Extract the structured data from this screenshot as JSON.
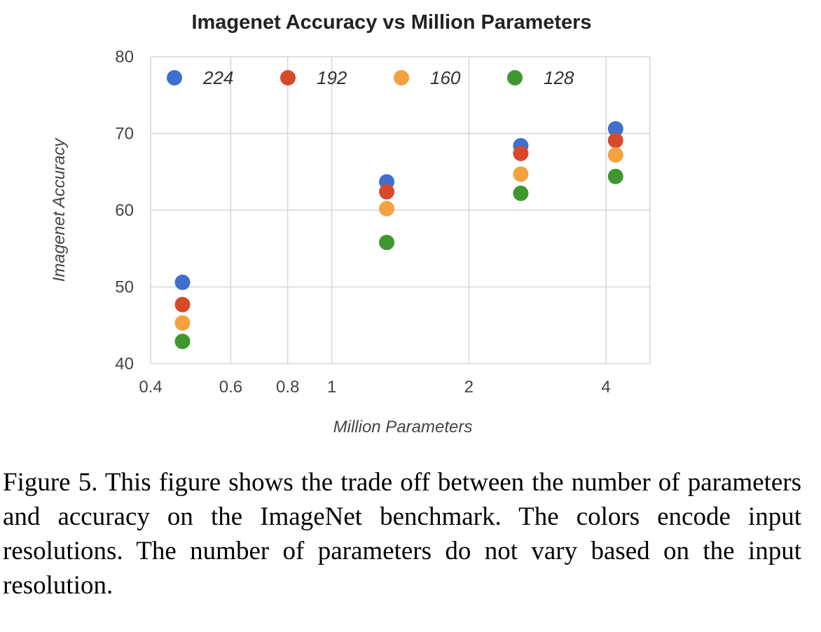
{
  "chart_data": {
    "type": "scatter",
    "title": "Imagenet Accuracy vs Million Parameters",
    "xlabel": "Million Parameters",
    "ylabel": "Imagenet Accuracy",
    "xscale": "log",
    "xlim": [
      0.4,
      5
    ],
    "ylim": [
      40,
      80
    ],
    "x_ticks": [
      {
        "value": 0.4,
        "label": "0.4"
      },
      {
        "value": 0.6,
        "label": "0.6"
      },
      {
        "value": 0.8,
        "label": "0.8"
      },
      {
        "value": 1,
        "label": "1"
      },
      {
        "value": 2,
        "label": "2"
      },
      {
        "value": 4,
        "label": "4"
      }
    ],
    "y_ticks": [
      {
        "value": 40,
        "label": "40"
      },
      {
        "value": 50,
        "label": "50"
      },
      {
        "value": 60,
        "label": "60"
      },
      {
        "value": 70,
        "label": "70"
      },
      {
        "value": 80,
        "label": "80"
      }
    ],
    "grid": true,
    "legend_position": "top",
    "x": [
      0.47,
      1.32,
      2.6,
      4.2
    ],
    "series": [
      {
        "name": "224",
        "color": "#3f6fcf",
        "values": [
          50.6,
          63.7,
          68.4,
          70.6
        ]
      },
      {
        "name": "192",
        "color": "#d64a2b",
        "values": [
          47.7,
          62.4,
          67.4,
          69.1
        ]
      },
      {
        "name": "160",
        "color": "#f4a23f",
        "values": [
          45.3,
          60.2,
          64.7,
          67.2
        ]
      },
      {
        "name": "128",
        "color": "#3f982f",
        "values": [
          42.9,
          55.8,
          62.2,
          64.4
        ]
      }
    ]
  },
  "caption": "Figure 5. This figure shows the trade off between the number of parameters and accuracy on the ImageNet benchmark. The colors encode input resolutions.  The number of parameters do not vary based on the input resolution."
}
